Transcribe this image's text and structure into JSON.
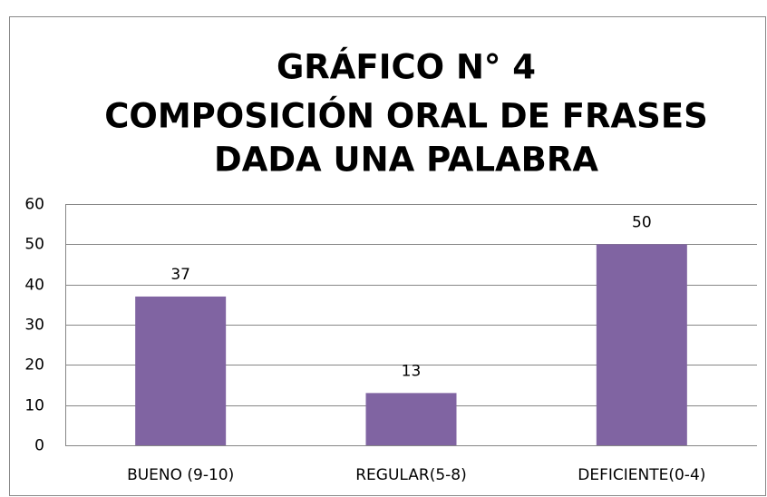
{
  "chart_data": {
    "type": "bar",
    "title": [
      "GRÁFICO N° 4",
      "COMPOSICIÓN ORAL DE FRASES",
      "DADA UNA PALABRA"
    ],
    "categories": [
      "BUENO (9-10)",
      "REGULAR(5-8)",
      "DEFICIENTE(0-4)"
    ],
    "values": [
      37,
      13,
      50
    ],
    "color": "#8064a2",
    "ylim": [
      0,
      60
    ],
    "yticks": [
      0,
      10,
      20,
      30,
      40,
      50,
      60
    ],
    "grid": true
  }
}
